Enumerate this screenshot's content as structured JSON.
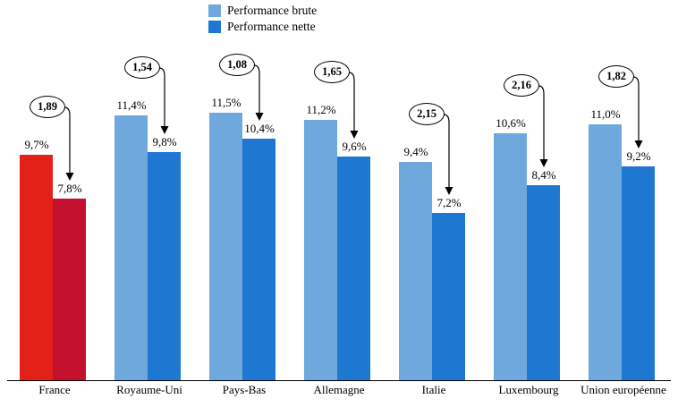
{
  "legend": {
    "items": [
      "Performance brute",
      "Performance nette"
    ]
  },
  "chart_data": {
    "type": "bar",
    "title": "",
    "xlabel": "",
    "ylabel": "",
    "ylim": [
      0,
      12
    ],
    "grid": false,
    "legend_position": "top",
    "categories": [
      "France",
      "Royaume-Uni",
      "Pays-Bas",
      "Allemagne",
      "Italie",
      "Luxembourg",
      "Union européenne"
    ],
    "series": [
      {
        "name": "Performance brute",
        "values": [
          9.7,
          11.4,
          11.5,
          11.2,
          9.4,
          10.6,
          11.0
        ],
        "labels": [
          "9,7%",
          "11,4%",
          "11,5%",
          "11,2%",
          "9,4%",
          "10,6%",
          "11,0%"
        ],
        "color": "#6fa8dc",
        "france_color": "#e32119"
      },
      {
        "name": "Performance nette",
        "values": [
          7.8,
          9.8,
          10.4,
          9.6,
          7.2,
          8.4,
          9.2
        ],
        "labels": [
          "7,8%",
          "9,8%",
          "10,4%",
          "9,6%",
          "7,2%",
          "8,4%",
          "9,2%"
        ],
        "color": "#1e78d2",
        "france_color": "#c3112f"
      }
    ],
    "diff_labels": [
      "1,89",
      "1,54",
      "1,08",
      "1,65",
      "2,15",
      "2,16",
      "1,82"
    ],
    "annotation_style": "ellipse-with-down-arrow"
  }
}
